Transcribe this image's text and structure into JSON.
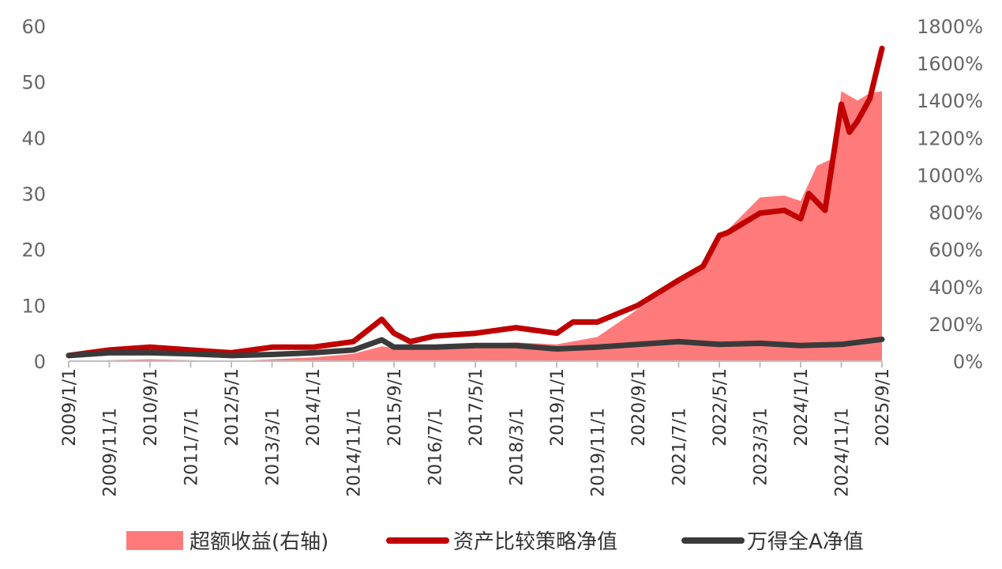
{
  "chart_data": {
    "type": "line",
    "x_tick_labels": [
      "2009/1/1",
      "2009/11/1",
      "2010/9/1",
      "2011/7/1",
      "2012/5/1",
      "2013/3/1",
      "2014/1/1",
      "2014/11/1",
      "2015/9/1",
      "2016/7/1",
      "2017/5/1",
      "2018/3/1",
      "2019/1/1",
      "2019/11/1",
      "2020/9/1",
      "2021/7/1",
      "2022/5/1",
      "2023/3/1",
      "2024/1/1",
      "2024/11/1",
      "2025/9/1"
    ],
    "y_left": {
      "ylim": [
        0,
        60
      ],
      "ticks": [
        "0",
        "10",
        "20",
        "30",
        "40",
        "50",
        "60"
      ]
    },
    "y_right": {
      "ylim": [
        0,
        1800
      ],
      "ticks": [
        "0%",
        "200%",
        "400%",
        "600%",
        "800%",
        "1000%",
        "1200%",
        "1400%",
        "1600%",
        "1800%"
      ]
    },
    "legend_position": "bottom",
    "grid": false,
    "series": [
      {
        "name": "超额收益(右轴)",
        "type": "area",
        "axis": "right",
        "color": "#ff7b7b",
        "x": [
          "2009/1/1",
          "2009/11/1",
          "2010/9/1",
          "2011/7/1",
          "2012/5/1",
          "2013/3/1",
          "2014/1/1",
          "2014/11/1",
          "2015/6/1",
          "2015/9/1",
          "2016/7/1",
          "2017/5/1",
          "2018/3/1",
          "2019/1/1",
          "2019/11/1",
          "2020/9/1",
          "2021/7/1",
          "2022/1/1",
          "2022/5/1",
          "2023/3/1",
          "2023/9/1",
          "2024/1/1",
          "2024/5/1",
          "2024/9/1",
          "2024/11/1",
          "2025/3/1",
          "2025/6/1",
          "2025/9/1"
        ],
        "values": [
          0,
          5,
          10,
          5,
          0,
          10,
          20,
          40,
          80,
          70,
          80,
          90,
          100,
          90,
          130,
          280,
          420,
          520,
          660,
          880,
          890,
          860,
          1050,
          1090,
          1450,
          1400,
          1440,
          1450
        ]
      },
      {
        "name": "资产比较策略净值",
        "type": "line",
        "axis": "left",
        "color": "#c00000",
        "x": [
          "2009/1/1",
          "2009/11/1",
          "2010/9/1",
          "2011/7/1",
          "2012/5/1",
          "2013/3/1",
          "2014/1/1",
          "2014/11/1",
          "2015/6/1",
          "2015/9/1",
          "2016/1/1",
          "2016/7/1",
          "2017/5/1",
          "2018/3/1",
          "2019/1/1",
          "2019/5/1",
          "2019/11/1",
          "2020/9/1",
          "2021/7/1",
          "2022/1/1",
          "2022/5/1",
          "2022/7/1",
          "2023/3/1",
          "2023/9/1",
          "2024/1/1",
          "2024/3/1",
          "2024/7/1",
          "2024/11/1",
          "2025/1/1",
          "2025/3/1",
          "2025/6/1",
          "2025/9/1"
        ],
        "values": [
          1,
          2,
          2.5,
          2,
          1.5,
          2.5,
          2.5,
          3.5,
          7.5,
          5,
          3.5,
          4.5,
          5,
          6,
          5,
          7,
          7,
          10,
          14.5,
          17,
          22.5,
          23,
          26.5,
          27,
          25.5,
          30,
          27,
          46,
          41,
          43,
          47,
          56
        ]
      },
      {
        "name": "万得全A净值",
        "type": "line",
        "axis": "left",
        "color": "#3a3a3a",
        "x": [
          "2009/1/1",
          "2009/11/1",
          "2010/9/1",
          "2011/7/1",
          "2012/5/1",
          "2013/3/1",
          "2014/1/1",
          "2014/11/1",
          "2015/6/1",
          "2015/9/1",
          "2016/7/1",
          "2017/5/1",
          "2018/3/1",
          "2019/1/1",
          "2019/11/1",
          "2020/9/1",
          "2021/7/1",
          "2022/5/1",
          "2023/3/1",
          "2024/1/1",
          "2024/11/1",
          "2025/9/1"
        ],
        "values": [
          1,
          1.5,
          1.5,
          1.3,
          1,
          1.2,
          1.5,
          2,
          3.8,
          2.5,
          2.5,
          2.8,
          2.8,
          2.2,
          2.5,
          3,
          3.5,
          3,
          3.2,
          2.8,
          3,
          3.9
        ]
      }
    ]
  },
  "legend": {
    "items": [
      {
        "label": "超额收益(右轴)",
        "color": "#ff7b7b",
        "kind": "area"
      },
      {
        "label": "资产比较策略净值",
        "color": "#c00000",
        "kind": "line"
      },
      {
        "label": "万得全A净值",
        "color": "#3a3a3a",
        "kind": "line"
      }
    ]
  }
}
